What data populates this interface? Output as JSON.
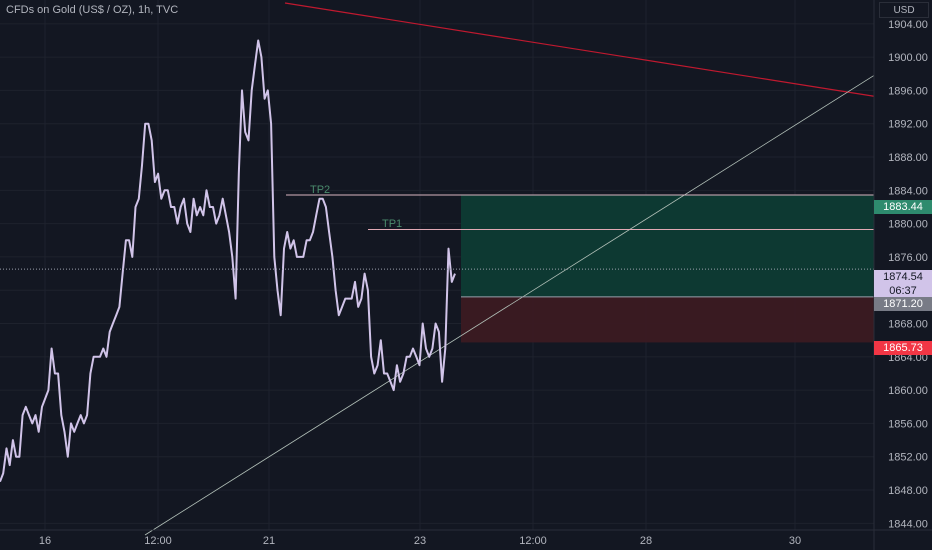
{
  "header": {
    "title": "CFDs on Gold (US$ / OZ), 1h, TVC",
    "currency": "USD"
  },
  "colors": {
    "background": "#131722",
    "price_line": "#d1c4e9",
    "resistance_line": "#c0192f",
    "support_line": "#b2c0b8",
    "target_zone": "#0d3b34",
    "stop_zone": "#3b1a22",
    "tp2_tag": "#2e8b6e",
    "current_tag": "#d1c4e9",
    "entry_tag": "#787b86",
    "stop_tag": "#f23645"
  },
  "annotations": {
    "tp2": "TP2",
    "tp1": "TP1"
  },
  "price_tags": {
    "tp2": "1883.44",
    "current": "1874.54",
    "countdown": "06:37",
    "entry": "1871.20",
    "stop": "1865.73"
  },
  "chart_data": {
    "type": "line",
    "series": [
      {
        "values": [
          1849,
          1850,
          1853,
          1851,
          1854,
          1852,
          1852,
          1857,
          1858,
          1857,
          1856,
          1857,
          1855,
          1858,
          1859,
          1860,
          1865,
          1862,
          1862,
          1857,
          1855,
          1852,
          1856,
          1855,
          1856,
          1857,
          1856,
          1857,
          1862,
          1864,
          1864,
          1864,
          1865,
          1864,
          1867,
          1868,
          1869,
          1870,
          1874,
          1878,
          1878,
          1876,
          1882,
          1883,
          1887,
          1892,
          1892,
          1890,
          1885,
          1886,
          1883,
          1884,
          1884,
          1882,
          1882,
          1880,
          1882,
          1883,
          1880,
          1879,
          1883,
          1881,
          1882,
          1881,
          1884,
          1882,
          1882,
          1880,
          1881,
          1883,
          1881,
          1879,
          1876,
          1871,
          1886,
          1896,
          1891,
          1890,
          1896,
          1899,
          1902,
          1900,
          1895,
          1896,
          1892,
          1876,
          1872,
          1869,
          1877,
          1879,
          1877,
          1878,
          1876,
          1876,
          1876,
          1878,
          1878,
          1879,
          1881,
          1883,
          1883,
          1882,
          1879,
          1876,
          1872,
          1869,
          1870,
          1871,
          1871,
          1871,
          1873,
          1870,
          1871,
          1874,
          1872,
          1864,
          1862,
          1863,
          1866,
          1862,
          1862,
          1861,
          1860,
          1863,
          1861,
          1862,
          1864,
          1864,
          1865,
          1864,
          1863,
          1868,
          1865,
          1864,
          1865,
          1868,
          1867,
          1861,
          1865,
          1877,
          1873,
          1874
        ]
      }
    ],
    "x_tick_labels": [
      "16",
      "12:00",
      "21",
      "23",
      "12:00",
      "28",
      "30"
    ],
    "y_tick_labels": [
      "1904.00",
      "1900.00",
      "1896.00",
      "1892.00",
      "1888.00",
      "1884.00",
      "1880.00",
      "1876.00",
      "1872.00",
      "1868.00",
      "1864.00",
      "1860.00",
      "1856.00",
      "1852.00",
      "1848.00",
      "1844.00"
    ],
    "ylim": [
      1843.5,
      1905.6
    ],
    "levels": {
      "tp2": 1883.44,
      "tp1": 1879.3,
      "current": 1874.54,
      "entry": 1871.2,
      "stop": 1865.73
    },
    "trendlines": [
      {
        "name": "resistance",
        "from_price": 1906.5,
        "to_price": 1895.3
      },
      {
        "name": "support",
        "from_price": 1842.6,
        "to_price": 1897.8
      }
    ],
    "grid": true
  }
}
